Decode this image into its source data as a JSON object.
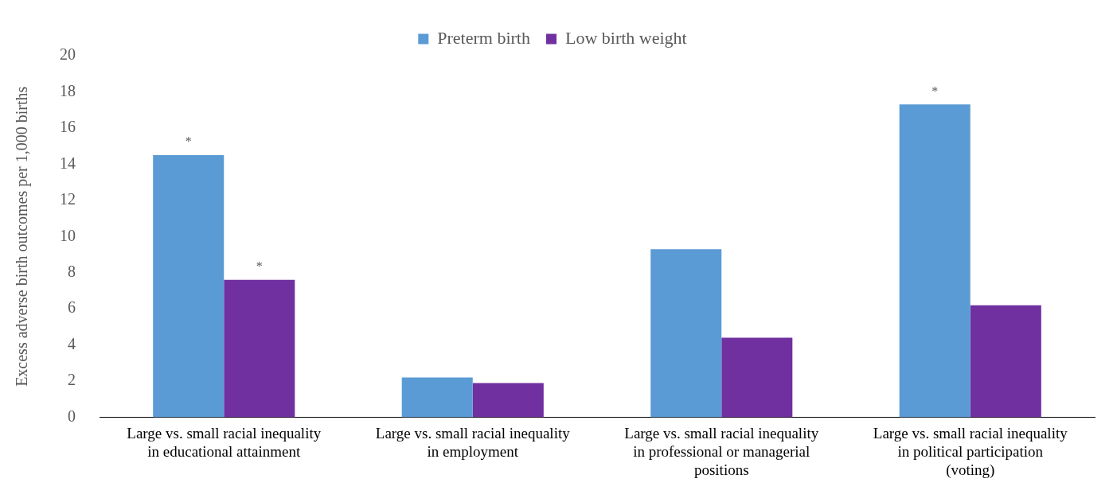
{
  "chart_data": {
    "type": "bar",
    "ylabel": "Excess adverse birth outcomes per 1,000 births",
    "categories": [
      "Large vs. small racial inequality in educational attainment",
      "Large vs. small racial inequality in employment",
      "Large vs. small racial inequality in professional or managerial positions",
      "Large vs. small racial inequality in political participation (voting)"
    ],
    "series": [
      {
        "name": "Preterm birth",
        "color": "#5b9bd5",
        "values": [
          14.5,
          2.2,
          9.3,
          17.3
        ]
      },
      {
        "name": "Low birth weight",
        "color": "#7030a0",
        "values": [
          7.6,
          1.9,
          4.4,
          6.2
        ]
      }
    ],
    "ylim": [
      0,
      20
    ],
    "yticks": [
      0,
      2,
      4,
      6,
      8,
      10,
      12,
      14,
      16,
      18,
      20
    ],
    "grid": false,
    "legend": "top",
    "annotations": [
      {
        "text": "*",
        "x": "Large vs. small racial inequality in educational attainment",
        "y": 14.5
      },
      {
        "text": "*",
        "x": "Large vs. small racial inequality in educational attainment",
        "y": 7.6
      },
      {
        "text": "*",
        "x": "Large vs. small racial inequality in political participation (voting)",
        "y": 17.3
      }
    ]
  }
}
